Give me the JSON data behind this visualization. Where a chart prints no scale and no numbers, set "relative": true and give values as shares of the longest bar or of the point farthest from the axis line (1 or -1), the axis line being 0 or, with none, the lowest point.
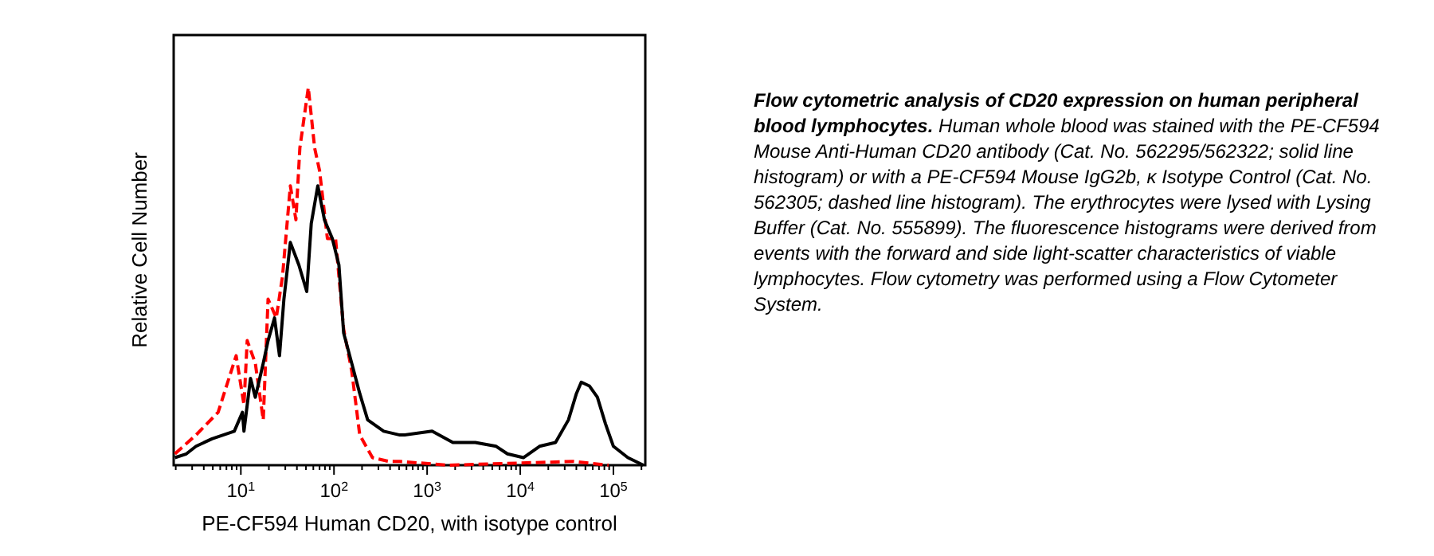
{
  "chart_data": {
    "type": "line",
    "relative": true,
    "log": "x",
    "title": "Flow cytometric analysis of CD20 expression on human peripheral blood lymphocytes.",
    "annotations": [
      "Human whole blood was stained with the PE-CF594 Mouse Anti-Human CD20 antibody (Cat. No. 562295/562322; solid line histogram) or with a PE-CF594 Mouse IgG2b, κ Isotype Control (Cat. No. 562305; dashed line histogram). The erythrocytes were lysed with Lysing Buffer (Cat. No. 555899). The fluorescence histograms were derived from events with the forward and side light-scatter characteristics of viable lymphocytes. Flow cytometry was performed using a Flow Cytometer System."
    ],
    "xlabel": "PE-CF594 Human CD20, with isotype control",
    "ylabel": "Relative Cell Number",
    "xlim": [
      1.9,
      220000
    ],
    "xticks": [
      {
        "value": 2,
        "label": null
      },
      {
        "value": 3,
        "label": null
      },
      {
        "value": 4,
        "label": null
      },
      {
        "value": 5,
        "label": null
      },
      {
        "value": 6,
        "label": null
      },
      {
        "value": 7,
        "label": null
      },
      {
        "value": 8,
        "label": null
      },
      {
        "value": 9,
        "label": null
      },
      {
        "value": 10,
        "label": "10$^{1}$"
      },
      {
        "value": 20,
        "label": null
      },
      {
        "value": 30,
        "label": null
      },
      {
        "value": 40,
        "label": null
      },
      {
        "value": 50,
        "label": null
      },
      {
        "value": 60,
        "label": null
      },
      {
        "value": 70,
        "label": null
      },
      {
        "value": 80,
        "label": null
      },
      {
        "value": 90,
        "label": null
      },
      {
        "value": 100,
        "label": "10$^{2}$"
      },
      {
        "value": 200,
        "label": null
      },
      {
        "value": 300,
        "label": null
      },
      {
        "value": 400,
        "label": null
      },
      {
        "value": 500,
        "label": null
      },
      {
        "value": 600,
        "label": null
      },
      {
        "value": 700,
        "label": null
      },
      {
        "value": 800,
        "label": null
      },
      {
        "value": 900,
        "label": null
      },
      {
        "value": 1000,
        "label": "10$^{3}$"
      },
      {
        "value": 2000,
        "label": null
      },
      {
        "value": 3000,
        "label": null
      },
      {
        "value": 4000,
        "label": null
      },
      {
        "value": 5000,
        "label": null
      },
      {
        "value": 6000,
        "label": null
      },
      {
        "value": 7000,
        "label": null
      },
      {
        "value": 8000,
        "label": null
      },
      {
        "value": 9000,
        "label": null
      },
      {
        "value": 10000,
        "label": "10$^{4}$"
      },
      {
        "value": 20000,
        "label": null
      },
      {
        "value": 30000,
        "label": null
      },
      {
        "value": 40000,
        "label": null
      },
      {
        "value": 50000,
        "label": null
      },
      {
        "value": 60000,
        "label": null
      },
      {
        "value": 70000,
        "label": null
      },
      {
        "value": 80000,
        "label": null
      },
      {
        "value": 90000,
        "label": null
      },
      {
        "value": 100000,
        "label": "10$^{5}$"
      },
      {
        "value": 200000,
        "label": null
      }
    ],
    "series": [
      {
        "color": "#000000",
        "line_style": "solid",
        "x": [
          1.96,
          2.6,
          3.3,
          4.9,
          8.5,
          10.4,
          10.8,
          12.7,
          14.3,
          17.4,
          19.6,
          23,
          26,
          29,
          34,
          42,
          51,
          57,
          67,
          79,
          96,
          113,
          127,
          155,
          189,
          230,
          342,
          509,
          574,
          1130,
          1890,
          3290,
          5510,
          7280,
          10800,
          16100,
          23900,
          32900,
          40100,
          45200,
          55100,
          67300,
          82100,
          100000,
          143000,
          210000
        ],
        "values": [
          0.02,
          0.03,
          0.05,
          0.07,
          0.09,
          0.14,
          0.09,
          0.23,
          0.18,
          0.27,
          0.33,
          0.39,
          0.29,
          0.44,
          0.59,
          0.53,
          0.46,
          0.64,
          0.74,
          0.65,
          0.6,
          0.53,
          0.35,
          0.27,
          0.19,
          0.12,
          0.09,
          0.08,
          0.08,
          0.09,
          0.06,
          0.06,
          0.05,
          0.03,
          0.02,
          0.05,
          0.06,
          0.12,
          0.19,
          0.22,
          0.21,
          0.18,
          0.11,
          0.05,
          0.02,
          0.0
        ]
      },
      {
        "color": "#ff0000",
        "line_style": "dashed",
        "x": [
          1.96,
          3.3,
          5.7,
          8.9,
          10.8,
          11.7,
          14.3,
          17.4,
          19.6,
          24,
          28,
          34,
          39,
          43,
          53,
          62,
          70,
          85,
          104,
          127,
          155,
          189,
          259,
          385,
          509,
          1680,
          37100,
          88700
        ],
        "values": [
          0.03,
          0.08,
          0.14,
          0.29,
          0.16,
          0.33,
          0.27,
          0.12,
          0.44,
          0.39,
          0.5,
          0.74,
          0.65,
          0.84,
          1.0,
          0.84,
          0.78,
          0.6,
          0.6,
          0.36,
          0.25,
          0.08,
          0.02,
          0.01,
          0.01,
          0.0,
          0.01,
          0.0
        ]
      }
    ]
  }
}
